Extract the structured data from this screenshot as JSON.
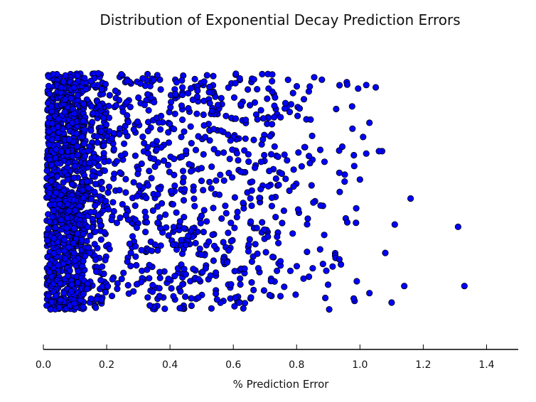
{
  "chart_data": {
    "type": "scatter",
    "title": "Distribution of Exponential Decay Prediction Errors",
    "xlabel": "% Prediction Error",
    "ylabel": "",
    "xlim": [
      0.0,
      1.5
    ],
    "ylim": [
      0.0,
      1.0
    ],
    "grid": false,
    "legend": "none",
    "marker_color": "#0000ff",
    "marker_edge": "#000000",
    "x_ticks": [
      "0.0",
      "0.2",
      "0.4",
      "0.6",
      "0.8",
      "1.0",
      "1.2",
      "1.4"
    ],
    "x_tick_values": [
      0.0,
      0.2,
      0.4,
      0.6,
      0.8,
      1.0,
      1.2,
      1.4
    ],
    "outliers": [
      {
        "x": 1.33,
        "y": 0.1
      },
      {
        "x": 1.31,
        "y": 0.35
      },
      {
        "x": 1.16,
        "y": 0.47
      },
      {
        "x": 1.14,
        "y": 0.1
      },
      {
        "x": 1.11,
        "y": 0.36
      },
      {
        "x": 1.1,
        "y": 0.03
      },
      {
        "x": 1.08,
        "y": 0.24
      },
      {
        "x": 1.07,
        "y": 0.67
      },
      {
        "x": 1.06,
        "y": 0.67
      },
      {
        "x": 1.05,
        "y": 0.94
      },
      {
        "x": 1.03,
        "y": 0.07
      },
      {
        "x": 1.03,
        "y": 0.79
      },
      {
        "x": 1.02,
        "y": 0.95
      },
      {
        "x": 1.02,
        "y": 0.66
      },
      {
        "x": 1.01,
        "y": 0.73
      },
      {
        "x": 1.0,
        "y": 0.55
      },
      {
        "x": 0.99,
        "y": 0.12
      }
    ],
    "series": [
      {
        "x_range": [
          0.01,
          0.13
        ],
        "y_range": [
          0.0,
          1.0
        ],
        "count": 900
      },
      {
        "x_range": [
          0.12,
          0.2
        ],
        "y_range": [
          0.0,
          1.0
        ],
        "count": 260
      },
      {
        "x_range": [
          0.2,
          0.45
        ],
        "y_range": [
          0.0,
          1.0
        ],
        "count": 330
      },
      {
        "x_range": [
          0.45,
          0.75
        ],
        "y_range": [
          0.0,
          1.0
        ],
        "count": 330
      },
      {
        "x_range": [
          0.75,
          1.0
        ],
        "y_range": [
          0.0,
          1.0
        ],
        "count": 90
      }
    ]
  }
}
